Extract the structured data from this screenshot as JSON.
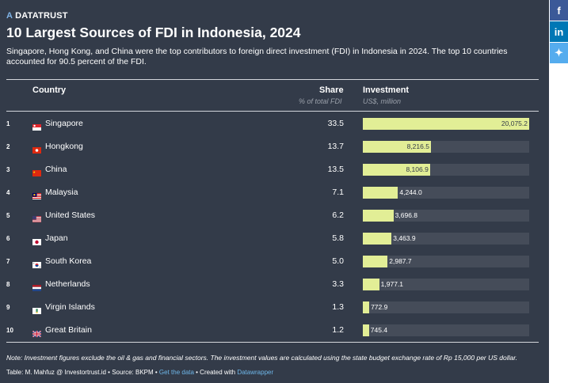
{
  "brand": {
    "logo": "A",
    "name": "DATATRUST"
  },
  "title": "10 Largest Sources of FDI in Indonesia, 2024",
  "subtitle": "Singapore, Hong Kong, and China were the top contributors to foreign direct investment (FDI) in Indonesia in 2024. The top 10 countries accounted for 90.5 percent of the FDI.",
  "social": [
    {
      "name": "facebook",
      "label": "f",
      "color": "#3b5998"
    },
    {
      "name": "linkedin",
      "label": "in",
      "color": "#0077b5"
    },
    {
      "name": "twitter",
      "label": "✦",
      "color": "#55acee"
    }
  ],
  "columns": {
    "country": "Country",
    "share": "Share",
    "share_sub": "% of total FDI",
    "investment": "Investment",
    "investment_sub": "US$, million"
  },
  "chart_data": {
    "type": "table",
    "bar_color": "#e2ee96",
    "track_color": "#454c59",
    "investment_max": 20075.2,
    "rows": [
      {
        "rank": "1",
        "country": "Singapore",
        "flag": "sg",
        "share": "33.5",
        "investment": 20075.2,
        "investment_label": "20,075.2"
      },
      {
        "rank": "2",
        "country": "Hongkong",
        "flag": "hk",
        "share": "13.7",
        "investment": 8216.5,
        "investment_label": "8,216.5"
      },
      {
        "rank": "3",
        "country": "China",
        "flag": "cn",
        "share": "13.5",
        "investment": 8106.9,
        "investment_label": "8,106.9"
      },
      {
        "rank": "4",
        "country": "Malaysia",
        "flag": "my",
        "share": "7.1",
        "investment": 4244.0,
        "investment_label": "4,244.0"
      },
      {
        "rank": "5",
        "country": "United States",
        "flag": "us",
        "share": "6.2",
        "investment": 3696.8,
        "investment_label": "3,696.8"
      },
      {
        "rank": "6",
        "country": "Japan",
        "flag": "jp",
        "share": "5.8",
        "investment": 3463.9,
        "investment_label": "3,463.9"
      },
      {
        "rank": "7",
        "country": "South Korea",
        "flag": "kr",
        "share": "5.0",
        "investment": 2987.7,
        "investment_label": "2,987.7"
      },
      {
        "rank": "8",
        "country": "Netherlands",
        "flag": "nl",
        "share": "3.3",
        "investment": 1977.1,
        "investment_label": "1,977.1"
      },
      {
        "rank": "9",
        "country": "Virgin Islands",
        "flag": "vg",
        "share": "1.3",
        "investment": 772.9,
        "investment_label": "772.9"
      },
      {
        "rank": "10",
        "country": "Great Britain",
        "flag": "gb",
        "share": "1.2",
        "investment": 745.4,
        "investment_label": "745.4"
      }
    ]
  },
  "note": "Note: Investment figures exclude the oil & gas and financial sectors. The investment values are calculated using the state budget exchange rate of Rp 15,000 per US dollar.",
  "credits": {
    "prefix": "Table: M. Mahfuz @ Investortrust.id • Source: BKPM • ",
    "get_data": "Get the data",
    "middle": " • Created with ",
    "tool": "Datawrapper"
  }
}
